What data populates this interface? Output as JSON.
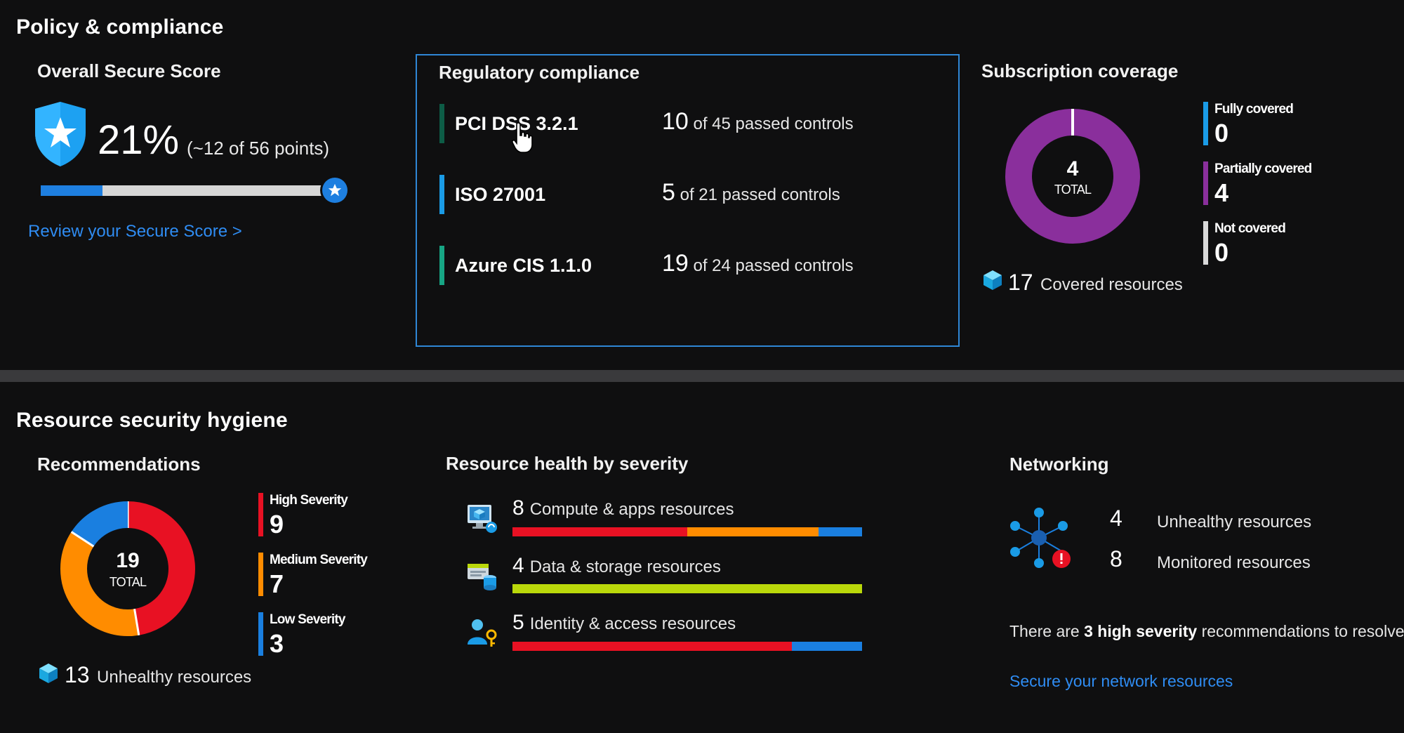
{
  "policy": {
    "title": "Policy & compliance",
    "secure_score": {
      "title": "Overall Secure Score",
      "percent": "21%",
      "points": "(~12 of 56 points)",
      "progress": 0.21,
      "link": "Review your Secure Score >"
    },
    "regulatory": {
      "title": "Regulatory compliance",
      "rows": [
        {
          "name": "PCI DSS 3.2.1",
          "passed": "10",
          "text": "of 45 passed controls",
          "color": "#0d5c46"
        },
        {
          "name": "ISO 27001",
          "passed": "5",
          "text": "of 21 passed controls",
          "color": "#1a9be6"
        },
        {
          "name": "Azure CIS 1.1.0",
          "passed": "19",
          "text": "of 24 passed controls",
          "color": "#17a584"
        }
      ]
    },
    "coverage": {
      "title": "Subscription coverage",
      "total": "4",
      "total_label": "TOTAL",
      "covered_count": "17",
      "covered_label": "Covered resources",
      "legend": [
        {
          "label": "Fully covered",
          "value": "0",
          "color": "#1a9be6"
        },
        {
          "label": "Partially covered",
          "value": "4",
          "color": "#8a2f9c"
        },
        {
          "label": "Not covered",
          "value": "0",
          "color": "#d9d9d9"
        }
      ]
    }
  },
  "hygiene": {
    "title": "Resource security hygiene",
    "recommendations": {
      "title": "Recommendations",
      "total": "19",
      "total_label": "TOTAL",
      "unhealthy_count": "13",
      "unhealthy_label": "Unhealthy resources",
      "legend": [
        {
          "label": "High Severity",
          "value": "9",
          "color": "#e81123"
        },
        {
          "label": "Medium Severity",
          "value": "7",
          "color": "#ff8c00"
        },
        {
          "label": "Low Severity",
          "value": "3",
          "color": "#1a7fe0"
        }
      ]
    },
    "health": {
      "title": "Resource health by severity",
      "rows": [
        {
          "count": "8",
          "label": "Compute & apps resources",
          "segments": [
            {
              "fraction": 0.5,
              "color": "#e81123"
            },
            {
              "fraction": 0.375,
              "color": "#ff8c00"
            },
            {
              "fraction": 0.125,
              "color": "#1a7fe0"
            }
          ]
        },
        {
          "count": "4",
          "label": "Data & storage resources",
          "segments": [
            {
              "fraction": 1.0,
              "color": "#bad80a"
            }
          ]
        },
        {
          "count": "5",
          "label": "Identity & access resources",
          "segments": [
            {
              "fraction": 0.8,
              "color": "#e81123"
            },
            {
              "fraction": 0.2,
              "color": "#1a7fe0"
            }
          ]
        }
      ]
    },
    "networking": {
      "title": "Networking",
      "unhealthy_count": "4",
      "unhealthy_label": "Unhealthy resources",
      "monitored_count": "8",
      "monitored_label": "Monitored resources",
      "note_prefix": "There are",
      "note_bold": "3 high severity",
      "note_suffix": "recommendations to resolve",
      "link": "Secure your network resources"
    }
  }
}
